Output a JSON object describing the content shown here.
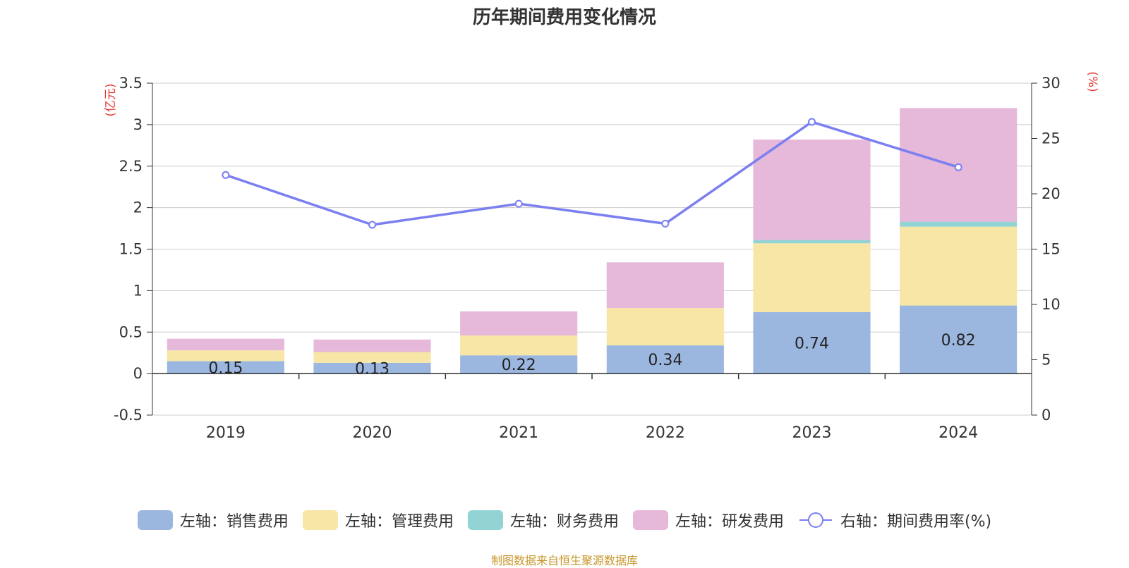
{
  "chart_data": {
    "type": "bar",
    "title": "历年期间费用变化情况",
    "categories": [
      "2019",
      "2020",
      "2021",
      "2022",
      "2023",
      "2024"
    ],
    "series": [
      {
        "name": "左轴：销售费用",
        "axis": "left",
        "type": "bar",
        "color": "#9bb7e0",
        "values": [
          0.15,
          0.13,
          0.22,
          0.34,
          0.74,
          0.82
        ],
        "labels": [
          "0.15",
          "0.13",
          "0.22",
          "0.34",
          "0.74",
          "0.82"
        ]
      },
      {
        "name": "左轴：管理费用",
        "axis": "left",
        "type": "bar",
        "color": "#f7e6a6",
        "values": [
          0.13,
          0.13,
          0.24,
          0.45,
          0.83,
          0.95
        ]
      },
      {
        "name": "左轴：财务费用",
        "axis": "left",
        "type": "bar",
        "color": "#92d4d4",
        "values": [
          0.0,
          0.0,
          0.0,
          0.0,
          0.04,
          0.06
        ]
      },
      {
        "name": "左轴：研发费用",
        "axis": "left",
        "type": "bar",
        "color": "#e6b8d9",
        "values": [
          0.14,
          0.15,
          0.29,
          0.55,
          1.21,
          1.37
        ]
      },
      {
        "name": "右轴：期间费用率(%)",
        "axis": "right",
        "type": "line",
        "color": "#7b7ff0",
        "values": [
          21.7,
          17.2,
          19.1,
          17.3,
          26.5,
          22.4
        ]
      }
    ],
    "y_left": {
      "label": "(亿元)",
      "ylim": [
        -0.5,
        3.5
      ],
      "ticks": [
        "3.5",
        "3",
        "2.5",
        "2",
        "1.5",
        "1",
        "0.5",
        "0",
        "-0.5"
      ]
    },
    "y_right": {
      "label": "(%)",
      "ylim": [
        0,
        30
      ],
      "ticks": [
        "30",
        "25",
        "20",
        "15",
        "10",
        "5",
        "0"
      ]
    },
    "grid": true,
    "legend_position": "bottom"
  },
  "source": "制图数据来自恒生聚源数据库"
}
